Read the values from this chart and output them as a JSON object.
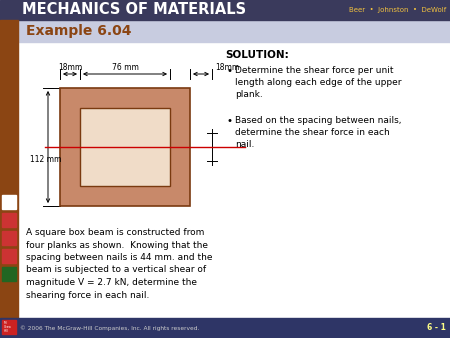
{
  "title_bar_text": "MECHANICS OF MATERIALS",
  "title_bar_color": "#3a3a5c",
  "title_bar_text_color": "#ffffff",
  "authors_text": "Beer  •  Johnston  •  DeWolf",
  "authors_color": "#f0c040",
  "example_label": "Example 6.04",
  "example_bg_color": "#c8cce0",
  "example_text_color": "#8B4513",
  "main_bg_color": "#ffffff",
  "left_sidebar_color": "#8B4513",
  "slide_bg_color": "#ffffff",
  "footer_bg_color": "#2e3566",
  "footer_text_color": "#cccccc",
  "footer_right_color": "#ffff88",
  "solution_title": "SOLUTION:",
  "bullet1": "Determine the shear force per unit\nlength along each edge of the upper\nplank.",
  "bullet2": "Based on the spacing between nails,\ndetermine the shear force in each\nnail.",
  "body_text": "A square box beam is constructed from\nfour planks as shown.  Knowing that the\nspacing between nails is 44 mm. and the\nbeam is subjected to a vertical shear of\nmagnitude V = 2.7 kN, determine the\nshearing force in each nail.",
  "footer_text": "© 2006 The McGraw-Hill Companies, Inc. All rights reserved.",
  "footer_right": "6 - 1",
  "dim_18mm_left": "18mm",
  "dim_76mm": "76 mm",
  "dim_18mm_right": "18mm",
  "dim_112mm": "112 mm",
  "plank_fill_color": "#c8896a",
  "plank_edge_color": "#7a3a10",
  "inner_fill_color": "#f0dcc8",
  "redline_color": "#cc0000",
  "nav_icon_colors": [
    "#ffffff",
    "#cc3333",
    "#cc3333",
    "#cc3333",
    "#226622"
  ]
}
